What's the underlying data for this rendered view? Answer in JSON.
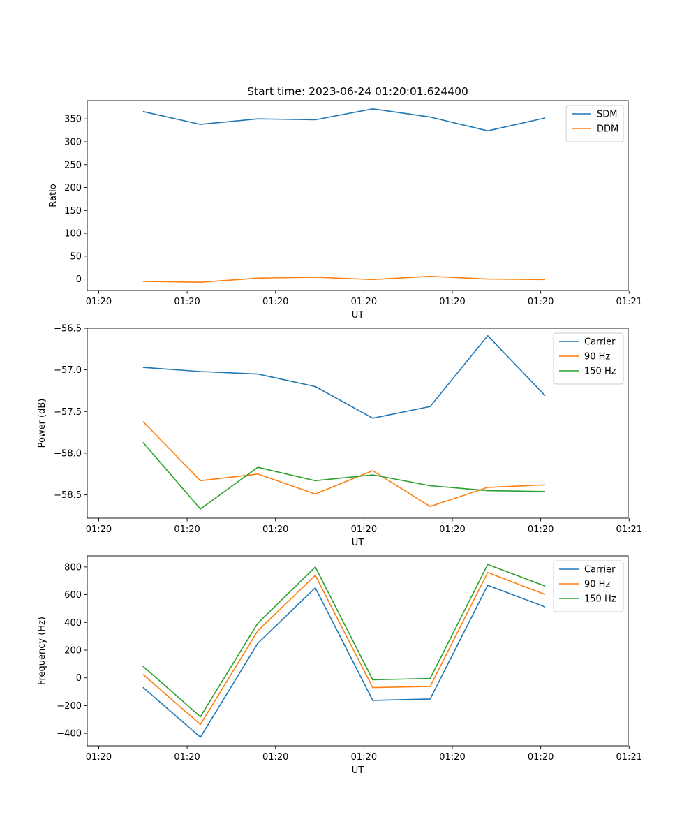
{
  "figure": {
    "title": "Start time: 2023-06-24 01:20:01.624400",
    "colors": {
      "c0": "#1f77b4",
      "c1": "#ff7f0e",
      "c2": "#2ca02c",
      "axes": "#000000",
      "background": "#ffffff"
    }
  },
  "chart_data": [
    {
      "type": "line",
      "title": "Start time: 2023-06-24 01:20:01.624400",
      "xlabel": "UT",
      "ylabel": "Ratio",
      "x_tick_labels": [
        "01:20",
        "01:20",
        "01:20",
        "01:20",
        "01:20",
        "01:20",
        "01:21"
      ],
      "xlim": [
        -0.13,
        5.99
      ],
      "x": [
        0.5,
        1.15,
        1.8,
        2.45,
        3.1,
        3.75,
        4.4,
        5.05
      ],
      "ylim": [
        -25,
        390
      ],
      "y_ticks": [
        0,
        50,
        100,
        150,
        200,
        250,
        300,
        350
      ],
      "legend_position": "top-right",
      "grid": false,
      "series": [
        {
          "name": "SDM",
          "color": "#1f77b4",
          "values": [
            366,
            338,
            350,
            348,
            372,
            354,
            324,
            352
          ]
        },
        {
          "name": "DDM",
          "color": "#ff7f0e",
          "values": [
            -5,
            -7,
            2,
            4,
            -1,
            6,
            0,
            -1
          ]
        }
      ]
    },
    {
      "type": "line",
      "xlabel": "UT",
      "ylabel": "Power (dB)",
      "x_tick_labels": [
        "01:20",
        "01:20",
        "01:20",
        "01:20",
        "01:20",
        "01:20",
        "01:21"
      ],
      "xlim": [
        -0.13,
        5.99
      ],
      "x": [
        0.5,
        1.15,
        1.8,
        2.45,
        3.1,
        3.75,
        4.4,
        5.05
      ],
      "ylim": [
        -58.78,
        -56.5
      ],
      "y_ticks": [
        -58.5,
        -58.0,
        -57.5,
        -57.0,
        -56.5
      ],
      "y_tick_labels": [
        "−58.5",
        "−58.0",
        "−57.5",
        "−57.0",
        "−56.5"
      ],
      "legend_position": "top-right",
      "grid": false,
      "series": [
        {
          "name": "Carrier",
          "color": "#1f77b4",
          "values": [
            -56.97,
            -57.02,
            -57.05,
            -57.2,
            -57.58,
            -57.44,
            -56.59,
            -57.31
          ]
        },
        {
          "name": "90 Hz",
          "color": "#ff7f0e",
          "values": [
            -57.62,
            -58.33,
            -58.25,
            -58.49,
            -58.21,
            -58.64,
            -58.41,
            -58.38
          ]
        },
        {
          "name": "150 Hz",
          "color": "#2ca02c",
          "values": [
            -57.87,
            -58.67,
            -58.17,
            -58.33,
            -58.26,
            -58.39,
            -58.45,
            -58.46
          ]
        }
      ]
    },
    {
      "type": "line",
      "xlabel": "UT",
      "ylabel": "Frequency (Hz)",
      "x_tick_labels": [
        "01:20",
        "01:20",
        "01:20",
        "01:20",
        "01:20",
        "01:20",
        "01:21"
      ],
      "xlim": [
        -0.13,
        5.99
      ],
      "x": [
        0.5,
        1.15,
        1.8,
        2.45,
        3.1,
        3.75,
        4.4,
        5.05
      ],
      "ylim": [
        -490,
        880
      ],
      "y_ticks": [
        -400,
        -200,
        0,
        200,
        400,
        600,
        800
      ],
      "y_tick_labels": [
        "−400",
        "−200",
        "0",
        "200",
        "400",
        "600",
        "800"
      ],
      "legend_position": "top-right",
      "grid": false,
      "series": [
        {
          "name": "Carrier",
          "color": "#1f77b4",
          "values": [
            -68,
            -428,
            250,
            650,
            -162,
            -152,
            668,
            512
          ]
        },
        {
          "name": "90 Hz",
          "color": "#ff7f0e",
          "values": [
            26,
            -336,
            340,
            740,
            -70,
            -62,
            760,
            602
          ]
        },
        {
          "name": "150 Hz",
          "color": "#2ca02c",
          "values": [
            84,
            -280,
            395,
            800,
            -14,
            -4,
            818,
            662
          ]
        }
      ]
    }
  ]
}
